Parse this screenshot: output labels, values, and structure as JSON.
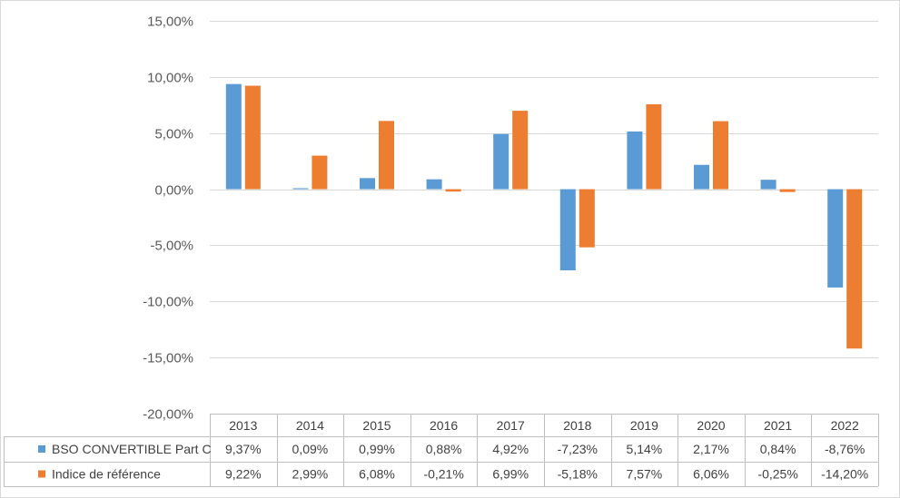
{
  "chart_data": {
    "type": "bar",
    "title": "",
    "xlabel": "",
    "ylabel": "",
    "ylim": [
      -20,
      15
    ],
    "ytick_step": 5,
    "ytick_labels": [
      "15,00%",
      "10,00%",
      "5,00%",
      "0,00%",
      "-5,00%",
      "-10,00%",
      "-15,00%",
      "-20,00%"
    ],
    "grid": true,
    "legend_placement": "data-table",
    "categories": [
      "2013",
      "2014",
      "2015",
      "2016",
      "2017",
      "2018",
      "2019",
      "2020",
      "2021",
      "2022"
    ],
    "series": [
      {
        "name": "BSO CONVERTIBLE Part C",
        "color": "#5b9bd5",
        "values": [
          9.37,
          0.09,
          0.99,
          0.88,
          4.92,
          -7.23,
          5.14,
          2.17,
          0.84,
          -8.76
        ],
        "labels": [
          "9,37%",
          "0,09%",
          "0,99%",
          "0,88%",
          "4,92%",
          "-7,23%",
          "5,14%",
          "2,17%",
          "0,84%",
          "-8,76%"
        ]
      },
      {
        "name": "Indice de référence",
        "color": "#ed7d31",
        "values": [
          9.22,
          2.99,
          6.08,
          -0.21,
          6.99,
          -5.18,
          7.57,
          6.06,
          -0.25,
          -14.2
        ],
        "labels": [
          "9,22%",
          "2,99%",
          "6,08%",
          "-0,21%",
          "6,99%",
          "-5,18%",
          "7,57%",
          "6,06%",
          "-0,25%",
          "-14,20%"
        ]
      }
    ]
  }
}
